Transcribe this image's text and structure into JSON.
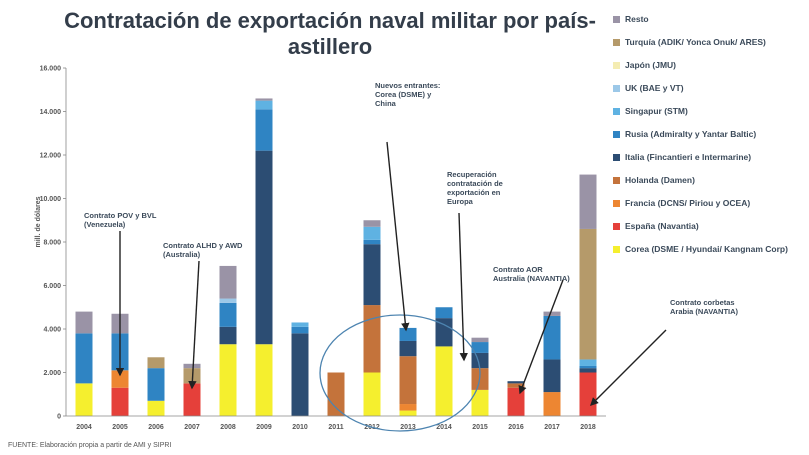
{
  "title": "Contratación de exportación naval militar por país-astillero",
  "source": "FUENTE: Elaboración propia a partir de AMI y SIPRI",
  "chart_data": {
    "type": "bar",
    "stacked": true,
    "title": "Contratación de exportación naval militar por país-astillero",
    "ylabel": "mill. de dólares",
    "xlabel": "",
    "ylim": [
      0,
      16000
    ],
    "yticks": [
      "0",
      "2.000",
      "4.000",
      "6.000",
      "8.000",
      "10.000",
      "12.000",
      "14.000",
      "16.000"
    ],
    "ytick_values": [
      0,
      2000,
      4000,
      6000,
      8000,
      10000,
      12000,
      14000,
      16000
    ],
    "categories": [
      "2004",
      "2005",
      "2006",
      "2007",
      "2008",
      "2009",
      "2010",
      "2011",
      "2012",
      "2013",
      "2014",
      "2015",
      "2016",
      "2017",
      "2018"
    ],
    "legend_position": "right",
    "series": [
      {
        "name": "Corea (DSME / Hyundai/ Kangnam Corp)",
        "color": "#f5ef2e",
        "values": [
          1500,
          0,
          700,
          0,
          3300,
          3300,
          0,
          0,
          2000,
          250,
          3200,
          1200,
          0,
          0,
          0
        ]
      },
      {
        "name": "España (Navantia)",
        "color": "#e5403a",
        "values": [
          0,
          1300,
          0,
          1500,
          0,
          0,
          0,
          0,
          0,
          0,
          0,
          0,
          1300,
          0,
          2000
        ]
      },
      {
        "name": "Francia (DCNS/ Piriou y OCEA)",
        "color": "#ed8632",
        "values": [
          0,
          800,
          0,
          0,
          0,
          0,
          0,
          0,
          0,
          300,
          0,
          0,
          0,
          1100,
          0
        ]
      },
      {
        "name": "Holanda (Damen)",
        "color": "#c4733b",
        "values": [
          0,
          0,
          0,
          0,
          0,
          0,
          0,
          2000,
          3100,
          2200,
          0,
          1000,
          200,
          0,
          0
        ]
      },
      {
        "name": "Italia (Fincantieri e Intermarine)",
        "color": "#2c4d73",
        "values": [
          0,
          0,
          0,
          0,
          800,
          8900,
          3800,
          0,
          2800,
          700,
          1300,
          700,
          100,
          1500,
          200
        ]
      },
      {
        "name": "Rusia (Admiralty y Yantar Baltic)",
        "color": "#2f84c3",
        "values": [
          2300,
          1700,
          1500,
          0,
          1100,
          1900,
          300,
          0,
          200,
          600,
          500,
          500,
          0,
          2000,
          100
        ]
      },
      {
        "name": "Singapur (STM)",
        "color": "#5fb2e2",
        "values": [
          0,
          0,
          0,
          0,
          0,
          400,
          200,
          0,
          600,
          0,
          0,
          0,
          0,
          0,
          300
        ]
      },
      {
        "name": "UK (BAE y VT)",
        "color": "#9cc8e8",
        "values": [
          0,
          0,
          0,
          0,
          200,
          0,
          0,
          0,
          0,
          0,
          0,
          0,
          0,
          0,
          0
        ]
      },
      {
        "name": "Japón (JMU)",
        "color": "#f4ecb2",
        "values": [
          0,
          0,
          0,
          0,
          0,
          0,
          0,
          0,
          0,
          0,
          0,
          0,
          0,
          0,
          0
        ]
      },
      {
        "name": "Turquía (ADIK/ Yonca Onuk/ ARES)",
        "color": "#b59a6a",
        "values": [
          0,
          0,
          500,
          700,
          0,
          0,
          0,
          0,
          0,
          0,
          0,
          0,
          0,
          0,
          6000
        ]
      },
      {
        "name": "Resto",
        "color": "#9a93a6",
        "values": [
          1000,
          900,
          0,
          200,
          1500,
          100,
          0,
          0,
          300,
          0,
          0,
          200,
          0,
          200,
          2500
        ]
      }
    ],
    "legend_order": [
      "Resto",
      "Turquía (ADIK/ Yonca Onuk/ ARES)",
      "Japón (JMU)",
      "UK (BAE y VT)",
      "Singapur (STM)",
      "Rusia (Admiralty y Yantar Baltic)",
      "Italia (Fincantieri e Intermarine)",
      "Holanda (Damen)",
      "Francia (DCNS/ Piriou y OCEA)",
      "España (Navantia)",
      "Corea (DSME / Hyundai/ Kangnam Corp)"
    ],
    "annotations": [
      {
        "lines": [
          "Contrato POV y BVL",
          "(Venezuela)"
        ],
        "target": "2005"
      },
      {
        "lines": [
          "Contrato ALHD y AWD",
          "(Australia)"
        ],
        "target": "2007"
      },
      {
        "lines": [
          "Nuevos entrantes:",
          "Corea (DSME) y",
          "China"
        ],
        "target": "2013"
      },
      {
        "lines": [
          "Recuperación",
          "contratación de",
          "exportación en",
          "Europa"
        ],
        "target": "2015"
      },
      {
        "lines": [
          "Contrato AOR",
          "Australia (NAVANTIA)"
        ],
        "target": "2016"
      },
      {
        "lines": [
          "Contrato corbetas",
          "Arabia (NAVANTIA)"
        ],
        "target": "2018"
      }
    ]
  }
}
